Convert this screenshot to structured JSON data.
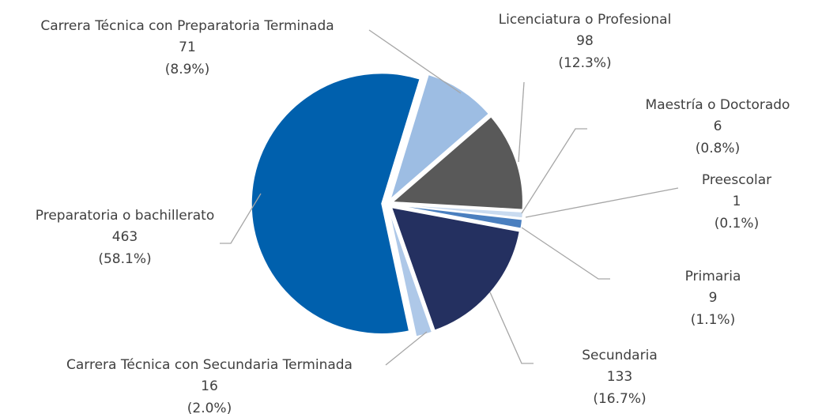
{
  "chart_data": {
    "type": "pie",
    "categories": [
      "Carrera Técnica con Preparatoria Terminada",
      "Licenciatura o Profesional",
      "Maestría o Doctorado",
      "Preescolar",
      "Primaria",
      "Secundaria",
      "Carrera Técnica con Secundaria Terminada",
      "Preparatoria o bachillerato"
    ],
    "values": [
      71,
      98,
      6,
      1,
      9,
      133,
      16,
      463
    ],
    "percentages": [
      8.9,
      12.3,
      0.8,
      0.1,
      1.1,
      16.7,
      2.0,
      58.1
    ],
    "percentage_labels": [
      "(8.9%)",
      "(12.3%)",
      "(0.8%)",
      "(0.1%)",
      "(1.1%)",
      "(16.7%)",
      "(2.0%)",
      "(58.1%)"
    ],
    "colors": [
      "#9dbde3",
      "#595959",
      "#c9dbf0",
      "#dfe8f4",
      "#4a7fbf",
      "#243060",
      "#aec8e8",
      "#0060ad"
    ]
  }
}
